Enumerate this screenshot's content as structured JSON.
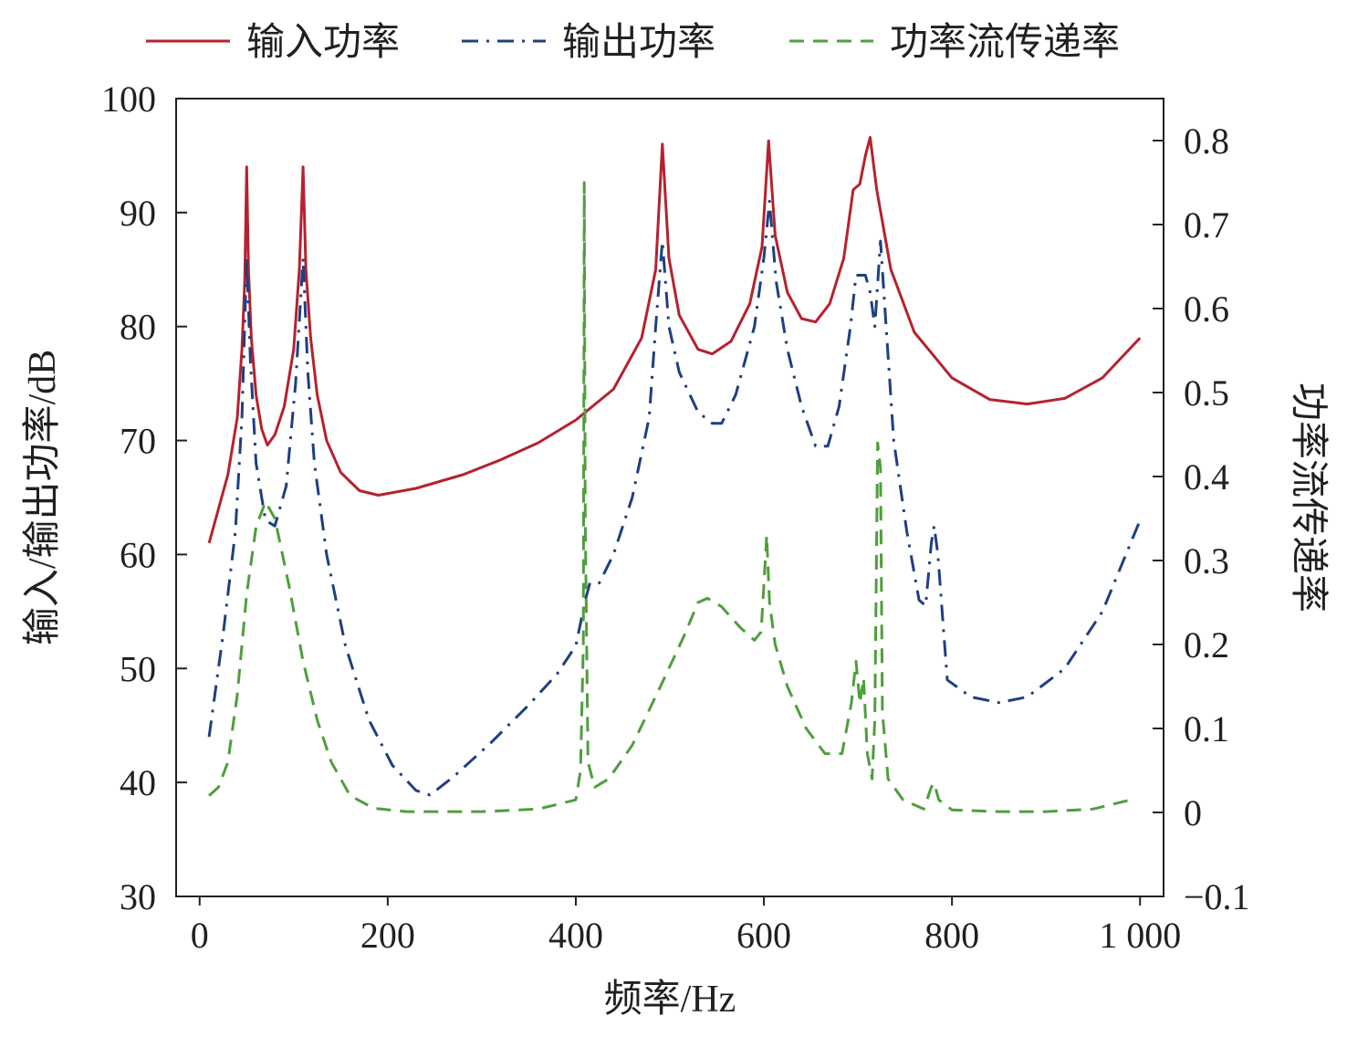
{
  "chart_data": {
    "type": "line",
    "xlabel": "频率/Hz",
    "ylabel_left": "输入/输出功率/dB",
    "ylabel_right": "功率流传递率",
    "xlim": [
      -25,
      1025
    ],
    "ylim_left": [
      30,
      100
    ],
    "ylim_right": [
      -0.1,
      0.85
    ],
    "x_ticks": [
      0,
      200,
      400,
      600,
      800,
      1000
    ],
    "x_tick_labels": [
      "0",
      "200",
      "400",
      "600",
      "800",
      "1 000"
    ],
    "y_ticks_left": [
      30,
      40,
      50,
      60,
      70,
      80,
      90,
      100
    ],
    "y_tick_labels_left": [
      "30",
      "40",
      "50",
      "60",
      "70",
      "80",
      "90",
      "100"
    ],
    "y_ticks_right": [
      -0.1,
      0,
      0.1,
      0.2,
      0.3,
      0.4,
      0.5,
      0.6,
      0.7,
      0.8
    ],
    "y_tick_labels_right": [
      "−0.1",
      "0",
      "0.1",
      "0.2",
      "0.3",
      "0.4",
      "0.5",
      "0.6",
      "0.7",
      "0.8"
    ],
    "grid": false,
    "legend_position": "top",
    "series": [
      {
        "name": "输入功率",
        "axis": "left",
        "color": "#b5222e",
        "style": "solid",
        "points": [
          [
            10,
            61
          ],
          [
            20,
            64
          ],
          [
            30,
            67
          ],
          [
            40,
            72
          ],
          [
            45,
            78
          ],
          [
            48,
            84
          ],
          [
            50,
            94
          ],
          [
            52,
            85
          ],
          [
            55,
            79
          ],
          [
            60,
            74
          ],
          [
            66,
            71
          ],
          [
            72,
            69.6
          ],
          [
            80,
            70.5
          ],
          [
            90,
            73
          ],
          [
            100,
            78
          ],
          [
            106,
            85
          ],
          [
            110,
            94
          ],
          [
            113,
            85
          ],
          [
            118,
            79
          ],
          [
            125,
            74
          ],
          [
            135,
            70
          ],
          [
            150,
            67.2
          ],
          [
            170,
            65.6
          ],
          [
            190,
            65.2
          ],
          [
            230,
            65.8
          ],
          [
            280,
            67
          ],
          [
            320,
            68.3
          ],
          [
            360,
            69.8
          ],
          [
            400,
            71.8
          ],
          [
            440,
            74.5
          ],
          [
            470,
            79
          ],
          [
            485,
            85
          ],
          [
            492,
            96
          ],
          [
            499,
            86
          ],
          [
            510,
            81
          ],
          [
            530,
            78
          ],
          [
            545,
            77.6
          ],
          [
            565,
            78.7
          ],
          [
            585,
            82
          ],
          [
            598,
            87
          ],
          [
            605,
            96.3
          ],
          [
            612,
            88
          ],
          [
            625,
            83
          ],
          [
            640,
            80.7
          ],
          [
            655,
            80.4
          ],
          [
            670,
            82
          ],
          [
            685,
            86
          ],
          [
            695,
            92
          ],
          [
            702,
            92.5
          ],
          [
            708,
            95
          ],
          [
            713,
            96.6
          ],
          [
            720,
            92
          ],
          [
            735,
            85
          ],
          [
            760,
            79.5
          ],
          [
            800,
            75.5
          ],
          [
            840,
            73.6
          ],
          [
            880,
            73.2
          ],
          [
            920,
            73.7
          ],
          [
            960,
            75.5
          ],
          [
            1000,
            79
          ]
        ]
      },
      {
        "name": "输出功率",
        "axis": "left",
        "color": "#1f3f80",
        "style": "dashdot",
        "points": [
          [
            10,
            44
          ],
          [
            25,
            53
          ],
          [
            38,
            62
          ],
          [
            45,
            72
          ],
          [
            50,
            86
          ],
          [
            54,
            77
          ],
          [
            60,
            68
          ],
          [
            70,
            63
          ],
          [
            80,
            62.5
          ],
          [
            92,
            66
          ],
          [
            102,
            75
          ],
          [
            110,
            86
          ],
          [
            115,
            76
          ],
          [
            122,
            68
          ],
          [
            135,
            60
          ],
          [
            155,
            52
          ],
          [
            180,
            45.5
          ],
          [
            205,
            41.5
          ],
          [
            230,
            39.3
          ],
          [
            245,
            38.9
          ],
          [
            270,
            40.5
          ],
          [
            310,
            43.5
          ],
          [
            350,
            46.8
          ],
          [
            380,
            49.5
          ],
          [
            400,
            52
          ],
          [
            410,
            56
          ],
          [
            415,
            57.5
          ],
          [
            425,
            57.5
          ],
          [
            440,
            60
          ],
          [
            460,
            65
          ],
          [
            478,
            72
          ],
          [
            485,
            80
          ],
          [
            492,
            87.5
          ],
          [
            499,
            80
          ],
          [
            510,
            76
          ],
          [
            530,
            72.5
          ],
          [
            545,
            71.5
          ],
          [
            555,
            71.5
          ],
          [
            570,
            74
          ],
          [
            590,
            80
          ],
          [
            600,
            86
          ],
          [
            606,
            91
          ],
          [
            613,
            84
          ],
          [
            625,
            78
          ],
          [
            640,
            73
          ],
          [
            655,
            69.5
          ],
          [
            668,
            69.5
          ],
          [
            680,
            73
          ],
          [
            692,
            80
          ],
          [
            698,
            84.5
          ],
          [
            708,
            84.5
          ],
          [
            713,
            83
          ],
          [
            718,
            80
          ],
          [
            724,
            87.5
          ],
          [
            730,
            80
          ],
          [
            738,
            70
          ],
          [
            752,
            62
          ],
          [
            765,
            56
          ],
          [
            772,
            55.5
          ],
          [
            778,
            61
          ],
          [
            781,
            62.5
          ],
          [
            785,
            60
          ],
          [
            795,
            49
          ],
          [
            820,
            47.5
          ],
          [
            850,
            47
          ],
          [
            880,
            47.5
          ],
          [
            920,
            50
          ],
          [
            960,
            55
          ],
          [
            1000,
            63
          ]
        ]
      },
      {
        "name": "功率流传递率",
        "axis": "right",
        "color": "#4f9e3d",
        "style": "dashed",
        "points": [
          [
            10,
            0.02
          ],
          [
            20,
            0.03
          ],
          [
            30,
            0.06
          ],
          [
            40,
            0.14
          ],
          [
            50,
            0.26
          ],
          [
            60,
            0.34
          ],
          [
            70,
            0.37
          ],
          [
            80,
            0.35
          ],
          [
            95,
            0.27
          ],
          [
            110,
            0.18
          ],
          [
            125,
            0.11
          ],
          [
            140,
            0.06
          ],
          [
            160,
            0.02
          ],
          [
            185,
            0.005
          ],
          [
            220,
            0.001
          ],
          [
            300,
            0.001
          ],
          [
            360,
            0.004
          ],
          [
            400,
            0.015
          ],
          [
            405,
            0.05
          ],
          [
            408,
            0.2
          ],
          [
            409,
            0.75
          ],
          [
            410,
            0.35
          ],
          [
            413,
            0.06
          ],
          [
            420,
            0.03
          ],
          [
            435,
            0.04
          ],
          [
            460,
            0.08
          ],
          [
            490,
            0.15
          ],
          [
            515,
            0.21
          ],
          [
            530,
            0.25
          ],
          [
            540,
            0.255
          ],
          [
            555,
            0.245
          ],
          [
            575,
            0.22
          ],
          [
            590,
            0.205
          ],
          [
            597,
            0.215
          ],
          [
            600,
            0.27
          ],
          [
            603,
            0.33
          ],
          [
            606,
            0.25
          ],
          [
            612,
            0.2
          ],
          [
            625,
            0.15
          ],
          [
            645,
            0.1
          ],
          [
            665,
            0.07
          ],
          [
            683,
            0.07
          ],
          [
            693,
            0.13
          ],
          [
            698,
            0.18
          ],
          [
            702,
            0.13
          ],
          [
            706,
            0.16
          ],
          [
            710,
            0.07
          ],
          [
            715,
            0.04
          ],
          [
            718,
            0.11
          ],
          [
            721,
            0.44
          ],
          [
            724,
            0.41
          ],
          [
            726,
            0.12
          ],
          [
            732,
            0.04
          ],
          [
            748,
            0.015
          ],
          [
            770,
            0.004
          ],
          [
            778,
            0.03
          ],
          [
            781,
            0.035
          ],
          [
            786,
            0.015
          ],
          [
            800,
            0.003
          ],
          [
            850,
            0.001
          ],
          [
            900,
            0.001
          ],
          [
            950,
            0.004
          ],
          [
            990,
            0.015
          ]
        ]
      }
    ]
  }
}
